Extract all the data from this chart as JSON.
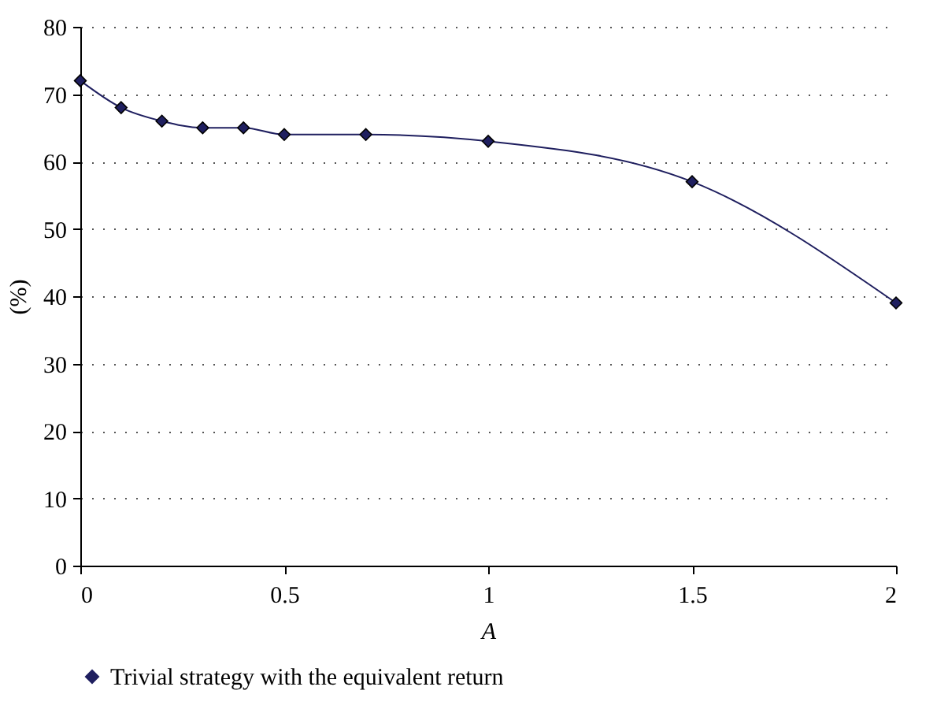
{
  "chart_data": {
    "type": "line",
    "xlabel": "A",
    "ylabel": "(%)",
    "x": [
      0,
      0.1,
      0.2,
      0.3,
      0.4,
      0.5,
      0.7,
      1,
      1.5,
      2
    ],
    "series": [
      {
        "name": "Trivial strategy with the equivalent return",
        "color": "#1f1f5f",
        "values": [
          72,
          68,
          66,
          65,
          65,
          64,
          64,
          63,
          57,
          39
        ]
      }
    ],
    "xlim": [
      0,
      2
    ],
    "xticks": [
      0,
      0.5,
      1,
      1.5,
      2
    ],
    "ylim": [
      0,
      80
    ],
    "yticks": [
      0,
      10,
      20,
      30,
      40,
      50,
      60,
      70,
      80
    ],
    "grid": "y",
    "legend": "bottom",
    "marker": "diamond",
    "line_style": "solid"
  }
}
